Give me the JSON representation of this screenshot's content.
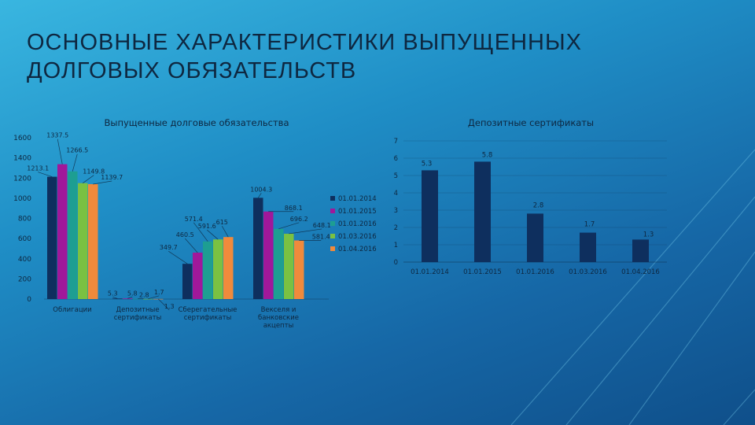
{
  "slide": {
    "title_line1": "ОСНОВНЫЕ ХАРАКТЕРИСТИКИ ВЫПУЩЕННЫХ",
    "title_line2": "ДОЛГОВЫХ ОБЯЗАТЕЛЬСТВ"
  },
  "chart_data": [
    {
      "type": "bar",
      "title": "Выпущенные долговые обязательства",
      "categories": [
        [
          "Облигации"
        ],
        [
          "Депозитные",
          "сертификаты"
        ],
        [
          "Сберегательные",
          "сертификаты"
        ],
        [
          "Векселя и",
          "банковские",
          "акцепты"
        ]
      ],
      "series": [
        {
          "name": "01.01.2014",
          "color": "#0e2f5e",
          "values": [
            1213.1,
            5.3,
            349.7,
            1004.3
          ]
        },
        {
          "name": "01.01.2015",
          "color": "#a0189a",
          "values": [
            1337.5,
            5.8,
            460.5,
            868.1
          ]
        },
        {
          "name": "01.01.2016",
          "color": "#1d9e92",
          "values": [
            1266.5,
            2.8,
            571.4,
            696.2
          ]
        },
        {
          "name": "01.03.2016",
          "color": "#7ac142",
          "values": [
            1149.8,
            1.7,
            591.6,
            648.1
          ]
        },
        {
          "name": "01.04.2016",
          "color": "#f08a3c",
          "values": [
            1139.7,
            1.3,
            615,
            581.4
          ]
        }
      ],
      "yticks": [
        "0",
        "200",
        "400",
        "600",
        "800",
        "1000",
        "1200",
        "1400",
        "1600"
      ],
      "ylim": [
        0,
        1600
      ],
      "legend_position": "right",
      "grid": false
    },
    {
      "type": "bar",
      "title": "Депозитные сертификаты",
      "categories": [
        "01.01.2014",
        "01.01.2015",
        "01.01.2016",
        "01.03.2016",
        "01.04.2016"
      ],
      "values": [
        5.3,
        5.8,
        2.8,
        1.7,
        1.3
      ],
      "labels": [
        "5.3",
        "5.8",
        "2.8",
        "1.7",
        "1.3"
      ],
      "color": "#0e2f5e",
      "yticks": [
        "0",
        "1",
        "2",
        "3",
        "4",
        "5",
        "6",
        "7"
      ],
      "ylim": [
        0,
        7
      ],
      "grid": true
    }
  ]
}
